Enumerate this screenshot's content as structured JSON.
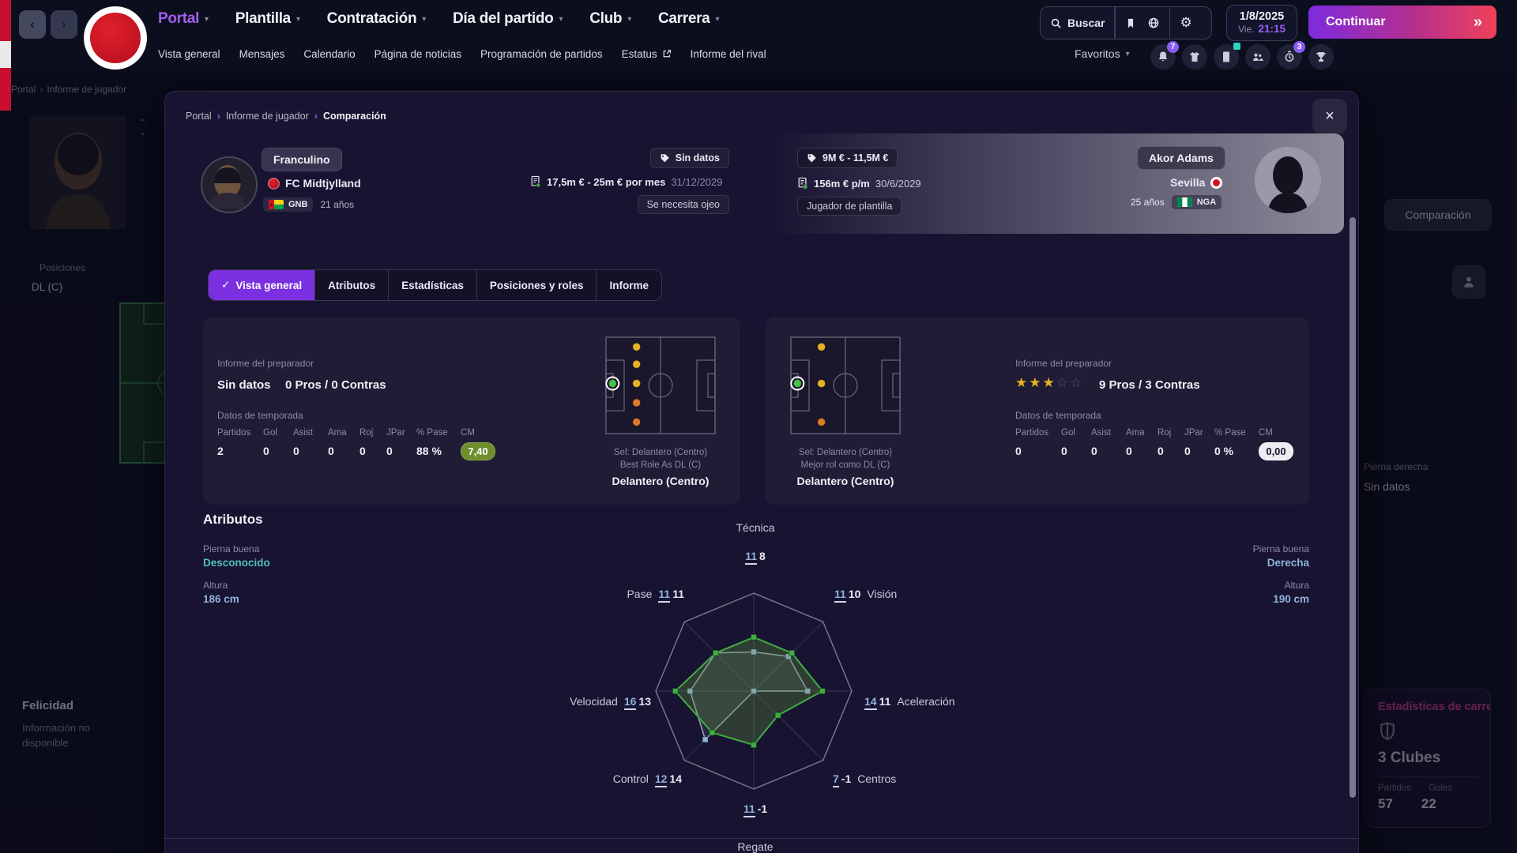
{
  "topbar": {
    "nav": [
      {
        "label": "Portal",
        "active": true
      },
      {
        "label": "Plantilla"
      },
      {
        "label": "Contratación"
      },
      {
        "label": "Día del partido"
      },
      {
        "label": "Club"
      },
      {
        "label": "Carrera"
      }
    ],
    "subnav": [
      {
        "label": "Vista general"
      },
      {
        "label": "Mensajes"
      },
      {
        "label": "Calendario"
      },
      {
        "label": "Página de noticias"
      },
      {
        "label": "Programación de partidos"
      },
      {
        "label": "Estatus",
        "external": true
      },
      {
        "label": "Informe del rival"
      }
    ],
    "search_label": "Buscar",
    "toolbar_icons": [
      "bookmark-icon",
      "globe-icon",
      "settings-icon"
    ],
    "date": {
      "date": "1/8/2025",
      "day": "Vie.",
      "time": "21:15"
    },
    "continue_label": "Continuar",
    "favorites_label": "Favoritos",
    "favorite_icons": [
      {
        "name": "notifications-icon",
        "badge": "7"
      },
      {
        "name": "shirt-icon"
      },
      {
        "name": "inbox-icon",
        "dot": true
      },
      {
        "name": "staff-icon"
      },
      {
        "name": "training-icon",
        "badge": "3"
      },
      {
        "name": "trophy-icon"
      }
    ]
  },
  "background": {
    "breadcrumb": [
      "Portal",
      "Informe de jugador"
    ],
    "positions_label": "Posiciones",
    "position_value": "DL (C)",
    "happiness_title": "Felicidad",
    "happiness_note_line1": "Información no",
    "happiness_note_line2": "disponible",
    "comparison_button": "Comparación",
    "right_foot_label": "Pierna derecha",
    "right_foot_value": "Sin datos",
    "career": {
      "title": "Estadísticas de carrera",
      "clubs": "3 Clubes",
      "cols": [
        "Partidos",
        "Goles"
      ],
      "values": [
        "57",
        "22"
      ]
    }
  },
  "modal": {
    "breadcrumb": [
      "Portal",
      "Informe de jugador",
      "Comparación"
    ],
    "player1": {
      "name": "Franculino",
      "club": "FC Midtjylland",
      "nat": "GNB",
      "age": "21 años",
      "value_tag": "Sin datos",
      "contract": "17,5m € - 25m € por mes",
      "contract_end": "31/12/2029",
      "status": "Se necesita ojeo"
    },
    "player2": {
      "name": "Akor Adams",
      "club": "Sevilla",
      "nat": "NGA",
      "age": "25 años",
      "value_tag": "9M € - 11,5M €",
      "contract": "156m € p/m",
      "contract_end": "30/6/2029",
      "status": "Jugador de plantilla"
    },
    "tabs": [
      {
        "label": "Vista general",
        "active": true
      },
      {
        "label": "Atributos"
      },
      {
        "label": "Estadísticas"
      },
      {
        "label": "Posiciones y roles"
      },
      {
        "label": "Informe"
      }
    ],
    "card1": {
      "coach_label": "Informe del preparador",
      "rating_text": "Sin datos",
      "pros": "0 Pros / 0 Contras",
      "season_label": "Datos de temporada",
      "cols": [
        "Partidos",
        "Gol",
        "Asist",
        "Ama",
        "Roj",
        "JPar",
        "% Pase",
        "CM"
      ],
      "values": [
        "2",
        "0",
        "0",
        "0",
        "0",
        "0",
        "88 %"
      ],
      "rating_pill": "7,40",
      "sel": "Sel: Delantero (Centro)",
      "best_role": "Best Role As DL (C)",
      "position": "Delantero (Centro)",
      "pitch_dots": [
        {
          "fx": 0.28,
          "fy": 0.1,
          "c": "yellow"
        },
        {
          "fx": 0.28,
          "fy": 0.28,
          "c": "yellow"
        },
        {
          "fx": 0.06,
          "fy": 0.48,
          "c": "green",
          "sel": true
        },
        {
          "fx": 0.28,
          "fy": 0.48,
          "c": "yellow"
        },
        {
          "fx": 0.28,
          "fy": 0.68,
          "c": "orange"
        },
        {
          "fx": 0.28,
          "fy": 0.88,
          "c": "orange"
        }
      ]
    },
    "card2": {
      "coach_label": "Informe del preparador",
      "stars": 3,
      "stars_total": 5,
      "pros": "9 Pros / 3 Contras",
      "season_label": "Datos de temporada",
      "cols": [
        "Partidos",
        "Gol",
        "Asist",
        "Ama",
        "Roj",
        "JPar",
        "% Pase",
        "CM"
      ],
      "values": [
        "0",
        "0",
        "0",
        "0",
        "0",
        "0",
        "0 %"
      ],
      "rating_pill": "0,00",
      "sel": "Sel: Delantero (Centro)",
      "best_role": "Mejor rol como DL (C)",
      "position": "Delantero (Centro)",
      "pitch_dots": [
        {
          "fx": 0.28,
          "fy": 0.1,
          "c": "yellow"
        },
        {
          "fx": 0.06,
          "fy": 0.48,
          "c": "green",
          "sel": true
        },
        {
          "fx": 0.28,
          "fy": 0.48,
          "c": "yellow"
        },
        {
          "fx": 0.28,
          "fy": 0.88,
          "c": "orange"
        }
      ]
    },
    "attributes_title": "Atributos",
    "left_attr": {
      "foot_label": "Pierna buena",
      "foot": "Desconocido",
      "height_label": "Altura",
      "height": "186 cm"
    },
    "right_attr": {
      "foot_label": "Pierna buena",
      "foot": "Derecha",
      "height_label": "Altura",
      "height": "190 cm"
    }
  },
  "chart_data": {
    "type": "radar",
    "title": "Atributos",
    "categories": [
      "Técnica",
      "Visión",
      "Aceleración",
      "Centros",
      "Regate",
      "Control",
      "Velocidad",
      "Pase"
    ],
    "series": [
      {
        "name": "Franculino",
        "color": "#3fae42",
        "values": [
          11,
          11,
          14,
          7,
          11,
          12,
          16,
          11
        ]
      },
      {
        "name": "Akor Adams",
        "color": "#8fb2dc",
        "values": [
          8,
          10,
          11,
          -1,
          -1,
          14,
          13,
          11
        ]
      }
    ],
    "scale_max": 20,
    "grid": "octagon outline with center spokes",
    "legend_position": "none"
  },
  "colors": {
    "accent_purple": "#8b5cf6",
    "accent_pink": "#f04159",
    "rating_good": "#6f8f2f",
    "star_gold": "#e8b321",
    "dot_yellow": "#e3b327",
    "dot_orange": "#db7b2b",
    "dot_green": "#43c24a",
    "career_title_pink": "#cc3f8e"
  }
}
